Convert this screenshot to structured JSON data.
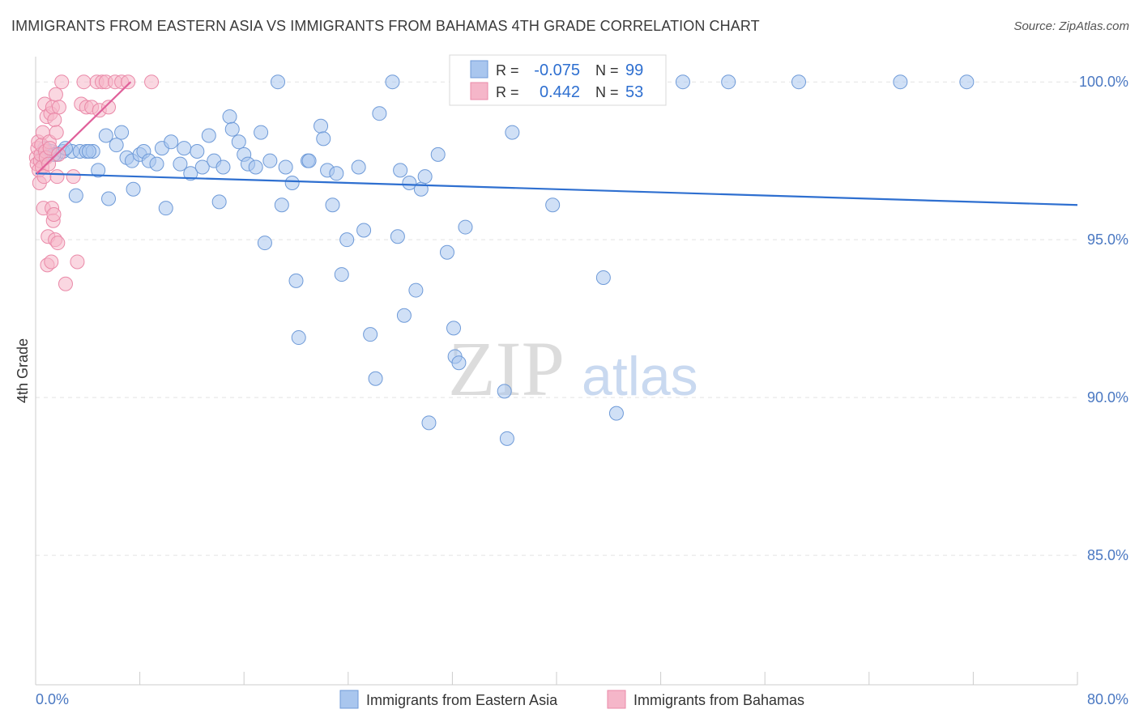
{
  "title": "IMMIGRANTS FROM EASTERN ASIA VS IMMIGRANTS FROM BAHAMAS 4TH GRADE CORRELATION CHART",
  "source": "Source: ZipAtlas.com",
  "watermark": {
    "zip": "ZIP",
    "atlas": "atlas"
  },
  "colors": {
    "blue_fill": "#a9c6ee",
    "blue_stroke": "#6e9ad8",
    "blue_line": "#2e6fd0",
    "pink_fill": "#f5b6c9",
    "pink_stroke": "#ea89a8",
    "pink_line": "#e0609a",
    "axis_text": "#4a78c2",
    "grid": "#e3e3e3"
  },
  "stats": {
    "blue": {
      "r_label": "R =",
      "r_value": "-0.075",
      "n_label": "N =",
      "n_value": "99"
    },
    "pink": {
      "r_label": "R =",
      "r_value": "0.442",
      "n_label": "N =",
      "n_value": "53"
    }
  },
  "chart_data": {
    "type": "scatter",
    "title": "IMMIGRANTS FROM EASTERN ASIA VS IMMIGRANTS FROM BAHAMAS 4TH GRADE CORRELATION CHART",
    "xlabel": "",
    "ylabel": "4th Grade",
    "xlim": [
      0,
      80
    ],
    "ylim": [
      80.9,
      100.8
    ],
    "x_tick_labels": [
      "0.0%",
      "80.0%"
    ],
    "y_ticks": [
      85,
      90,
      95,
      100
    ],
    "y_tick_labels": [
      "85.0%",
      "90.0%",
      "95.0%",
      "100.0%"
    ],
    "grid": true,
    "legend_position": "bottom",
    "series": [
      {
        "name": "Immigrants from Eastern Asia",
        "color": "#a9c6ee",
        "trend": {
          "x": [
            0,
            80
          ],
          "y": [
            97.1,
            96.1
          ]
        },
        "points": [
          [
            0.5,
            97.6
          ],
          [
            0.7,
            97.9
          ],
          [
            1.0,
            97.7
          ],
          [
            1.2,
            97.8
          ],
          [
            1.6,
            97.7
          ],
          [
            2.1,
            97.8
          ],
          [
            2.8,
            97.8
          ],
          [
            3.4,
            97.8
          ],
          [
            3.9,
            97.8
          ],
          [
            4.4,
            97.8
          ],
          [
            4.8,
            97.2
          ],
          [
            5.4,
            98.3
          ],
          [
            5.6,
            96.3
          ],
          [
            6.2,
            98.0
          ],
          [
            6.6,
            98.4
          ],
          [
            7.0,
            97.6
          ],
          [
            7.4,
            97.5
          ],
          [
            7.5,
            96.6
          ],
          [
            8.0,
            97.7
          ],
          [
            8.3,
            97.8
          ],
          [
            8.7,
            97.5
          ],
          [
            9.3,
            97.4
          ],
          [
            9.7,
            97.9
          ],
          [
            10.0,
            96.0
          ],
          [
            10.4,
            98.1
          ],
          [
            11.1,
            97.4
          ],
          [
            11.4,
            97.9
          ],
          [
            11.9,
            97.1
          ],
          [
            12.4,
            97.8
          ],
          [
            12.8,
            97.3
          ],
          [
            13.3,
            98.3
          ],
          [
            13.7,
            97.5
          ],
          [
            14.1,
            96.2
          ],
          [
            14.4,
            97.3
          ],
          [
            14.9,
            98.9
          ],
          [
            15.1,
            98.5
          ],
          [
            15.6,
            98.1
          ],
          [
            16.0,
            97.7
          ],
          [
            16.3,
            97.4
          ],
          [
            16.9,
            97.3
          ],
          [
            17.3,
            98.4
          ],
          [
            17.6,
            94.9
          ],
          [
            18.0,
            97.5
          ],
          [
            18.6,
            100.0
          ],
          [
            18.9,
            96.1
          ],
          [
            19.2,
            97.3
          ],
          [
            19.7,
            96.8
          ],
          [
            20.2,
            91.9
          ],
          [
            20.0,
            93.7
          ],
          [
            20.9,
            97.5
          ],
          [
            21.0,
            97.5
          ],
          [
            21.9,
            98.6
          ],
          [
            22.1,
            98.2
          ],
          [
            22.4,
            97.2
          ],
          [
            22.8,
            96.1
          ],
          [
            23.1,
            97.1
          ],
          [
            23.5,
            93.9
          ],
          [
            23.9,
            95.0
          ],
          [
            24.8,
            97.3
          ],
          [
            25.2,
            95.3
          ],
          [
            25.7,
            92.0
          ],
          [
            26.1,
            90.6
          ],
          [
            26.4,
            99.0
          ],
          [
            27.4,
            100.0
          ],
          [
            27.8,
            95.1
          ],
          [
            28.0,
            97.2
          ],
          [
            28.3,
            92.6
          ],
          [
            28.7,
            96.8
          ],
          [
            29.2,
            93.4
          ],
          [
            29.6,
            96.6
          ],
          [
            29.9,
            97.0
          ],
          [
            30.2,
            89.2
          ],
          [
            30.9,
            97.7
          ],
          [
            31.6,
            94.6
          ],
          [
            32.1,
            92.2
          ],
          [
            32.2,
            91.3
          ],
          [
            32.5,
            91.1
          ],
          [
            33.0,
            95.4
          ],
          [
            34.1,
            100.0
          ],
          [
            35.1,
            100.0
          ],
          [
            36.0,
            90.2
          ],
          [
            36.2,
            88.7
          ],
          [
            36.6,
            98.4
          ],
          [
            38.2,
            100.0
          ],
          [
            39.7,
            96.1
          ],
          [
            40.3,
            100.0
          ],
          [
            42.1,
            100.0
          ],
          [
            43.6,
            93.8
          ],
          [
            44.6,
            89.5
          ],
          [
            45.6,
            100.0
          ],
          [
            49.7,
            100.0
          ],
          [
            53.2,
            100.0
          ],
          [
            58.6,
            100.0
          ],
          [
            66.4,
            100.0
          ],
          [
            71.5,
            100.0
          ],
          [
            1.4,
            97.7
          ],
          [
            2.3,
            97.9
          ],
          [
            3.1,
            96.4
          ],
          [
            4.1,
            97.8
          ]
        ]
      },
      {
        "name": "Immigrants from Bahamas",
        "color": "#f5b6c9",
        "trend": {
          "x": [
            0.1,
            7.3
          ],
          "y": [
            97.1,
            100.0
          ]
        },
        "points": [
          [
            0.05,
            97.6
          ],
          [
            0.1,
            97.4
          ],
          [
            0.15,
            97.9
          ],
          [
            0.2,
            98.1
          ],
          [
            0.25,
            97.2
          ],
          [
            0.3,
            96.8
          ],
          [
            0.35,
            97.5
          ],
          [
            0.4,
            97.7
          ],
          [
            0.45,
            98.0
          ],
          [
            0.5,
            97.3
          ],
          [
            0.55,
            98.4
          ],
          [
            0.6,
            96.0
          ],
          [
            0.65,
            97.0
          ],
          [
            0.7,
            99.3
          ],
          [
            0.75,
            97.8
          ],
          [
            0.8,
            97.6
          ],
          [
            0.85,
            98.9
          ],
          [
            0.9,
            94.2
          ],
          [
            0.95,
            95.1
          ],
          [
            1.0,
            97.4
          ],
          [
            1.05,
            98.1
          ],
          [
            1.1,
            97.9
          ],
          [
            1.15,
            99.0
          ],
          [
            1.2,
            94.3
          ],
          [
            1.25,
            96.0
          ],
          [
            1.3,
            99.2
          ],
          [
            1.35,
            95.6
          ],
          [
            1.4,
            95.8
          ],
          [
            1.45,
            98.8
          ],
          [
            1.5,
            95.0
          ],
          [
            1.55,
            99.6
          ],
          [
            1.6,
            98.4
          ],
          [
            1.65,
            97.0
          ],
          [
            1.7,
            94.9
          ],
          [
            1.75,
            97.7
          ],
          [
            1.8,
            99.2
          ],
          [
            2.0,
            100.0
          ],
          [
            2.3,
            93.6
          ],
          [
            2.9,
            97.0
          ],
          [
            3.2,
            94.3
          ],
          [
            3.5,
            99.3
          ],
          [
            3.7,
            100.0
          ],
          [
            3.9,
            99.2
          ],
          [
            4.3,
            99.2
          ],
          [
            4.7,
            100.0
          ],
          [
            4.9,
            99.1
          ],
          [
            5.1,
            100.0
          ],
          [
            5.4,
            100.0
          ],
          [
            5.6,
            99.2
          ],
          [
            6.1,
            100.0
          ],
          [
            6.6,
            100.0
          ],
          [
            7.1,
            100.0
          ],
          [
            8.9,
            100.0
          ]
        ]
      }
    ]
  },
  "legend": {
    "items": [
      {
        "label": "Immigrants from Eastern Asia",
        "color": "#a9c6ee"
      },
      {
        "label": "Immigrants from Bahamas",
        "color": "#f5b6c9"
      }
    ]
  }
}
